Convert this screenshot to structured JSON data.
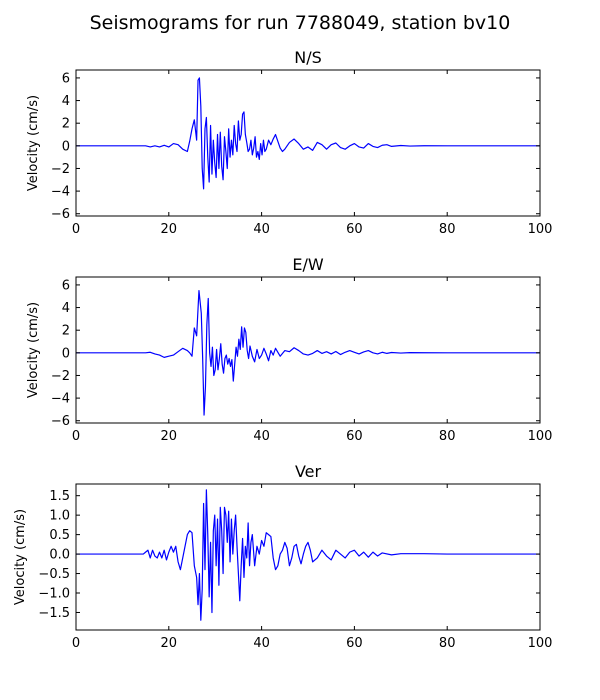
{
  "title": "Seismograms for run 7788049, station bv10",
  "chart_data": [
    {
      "type": "line",
      "title": "N/S",
      "ylabel": "Velocity (cm/s)",
      "xlim": [
        0,
        100
      ],
      "ylim": [
        -6.2,
        6.7
      ],
      "xticks": [
        0,
        20,
        40,
        60,
        80,
        100
      ],
      "yticks": [
        -6,
        -4,
        -2,
        0,
        2,
        4,
        6
      ],
      "xtick_labels": [
        "0",
        "20",
        "40",
        "60",
        "80",
        "100"
      ],
      "ytick_labels": [
        "−6",
        "−4",
        "−2",
        "0",
        "2",
        "4",
        "6"
      ],
      "color": "#0000ff",
      "x": [
        0,
        15,
        16,
        17,
        18,
        19,
        20,
        21,
        22,
        23,
        24,
        24.5,
        25,
        25.5,
        26,
        26.3,
        26.6,
        26.9,
        27.2,
        27.5,
        27.8,
        28.1,
        28.4,
        28.7,
        29,
        29.3,
        29.6,
        29.9,
        30.2,
        30.5,
        30.8,
        31.1,
        31.4,
        31.7,
        32,
        32.3,
        32.6,
        32.9,
        33.2,
        33.5,
        33.8,
        34.1,
        34.4,
        34.7,
        35,
        35.3,
        35.6,
        35.9,
        36.2,
        36.5,
        36.8,
        37.1,
        37.4,
        37.7,
        38,
        38.3,
        38.6,
        38.9,
        39.2,
        39.5,
        39.8,
        40.1,
        40.4,
        40.7,
        41,
        41.5,
        42,
        42.5,
        43,
        43.5,
        44,
        44.5,
        45,
        46,
        47,
        48,
        49,
        50,
        51,
        52,
        53,
        54,
        55,
        56,
        57,
        58,
        59,
        60,
        61,
        62,
        63,
        64,
        65,
        66,
        67,
        68,
        70,
        72,
        75,
        80,
        100
      ],
      "y": [
        0,
        0,
        -0.1,
        0,
        -0.1,
        0.05,
        -0.1,
        0.2,
        0.1,
        -0.3,
        -0.5,
        0.4,
        1.5,
        2.3,
        0.5,
        5.8,
        6.0,
        3.5,
        -2.0,
        -3.8,
        1.5,
        2.5,
        -1.0,
        -3.2,
        1.8,
        -2.5,
        0.5,
        -1.5,
        -2.8,
        1.0,
        -2.0,
        1.2,
        -1.8,
        -3.0,
        0.8,
        -0.5,
        -2.0,
        1.5,
        -1.0,
        0.5,
        -0.8,
        1.8,
        0.2,
        -0.5,
        2.2,
        0.5,
        1.0,
        2.8,
        3.0,
        1.0,
        0.3,
        -0.5,
        -0.3,
        0.5,
        -0.8,
        -0.2,
        0.8,
        -1.0,
        -0.5,
        -1.2,
        0.2,
        -0.8,
        0.5,
        -0.5,
        -0.3,
        0.5,
        0.1,
        0.6,
        1.0,
        0.4,
        -0.2,
        -0.5,
        -0.3,
        0.3,
        0.6,
        0.2,
        -0.3,
        -0.1,
        -0.4,
        0.3,
        0.1,
        -0.3,
        0.1,
        0.25,
        -0.15,
        -0.3,
        0.0,
        0.2,
        -0.1,
        -0.2,
        0.2,
        -0.05,
        -0.15,
        0.05,
        0.1,
        -0.05,
        0.03,
        -0.02,
        0.01,
        0,
        0
      ]
    },
    {
      "type": "line",
      "title": "E/W",
      "ylabel": "Velocity (cm/s)",
      "xlim": [
        0,
        100
      ],
      "ylim": [
        -6.2,
        6.7
      ],
      "xticks": [
        0,
        20,
        40,
        60,
        80,
        100
      ],
      "yticks": [
        -6,
        -4,
        -2,
        0,
        2,
        4,
        6
      ],
      "xtick_labels": [
        "0",
        "20",
        "40",
        "60",
        "80",
        "100"
      ],
      "ytick_labels": [
        "−6",
        "−4",
        "−2",
        "0",
        "2",
        "4",
        "6"
      ],
      "color": "#0000ff",
      "x": [
        0,
        15,
        16,
        17,
        18,
        19,
        20,
        21,
        22,
        23,
        24,
        24.5,
        25,
        25.5,
        26,
        26.5,
        27,
        27.3,
        27.6,
        27.9,
        28.2,
        28.5,
        28.8,
        29.1,
        29.4,
        29.7,
        30,
        30.3,
        30.6,
        30.9,
        31.2,
        31.5,
        31.8,
        32.1,
        32.4,
        32.7,
        33,
        33.3,
        33.6,
        33.9,
        34.2,
        34.5,
        34.8,
        35.1,
        35.4,
        35.7,
        36,
        36.3,
        36.6,
        36.9,
        37.2,
        37.5,
        38,
        38.5,
        39,
        39.5,
        40,
        40.5,
        41,
        41.5,
        42,
        42.5,
        43,
        44,
        45,
        46,
        47,
        48,
        49,
        50,
        51,
        52,
        53,
        54,
        55,
        56,
        57,
        58,
        59,
        60,
        61,
        62,
        63,
        64,
        65,
        66,
        67,
        68,
        70,
        72,
        75,
        80,
        100
      ],
      "y": [
        0,
        0,
        0.05,
        -0.1,
        -0.2,
        -0.4,
        -0.3,
        -0.2,
        0.1,
        0.4,
        0.2,
        0.0,
        -0.3,
        2.2,
        1.5,
        5.5,
        3.5,
        -0.5,
        -5.5,
        -3.0,
        2.5,
        4.8,
        0.0,
        -1.2,
        0.5,
        -2.0,
        -1.5,
        0.3,
        -1.5,
        -0.5,
        0.8,
        -1.0,
        -1.8,
        -0.5,
        -0.2,
        -1.0,
        -0.5,
        -1.2,
        -0.6,
        -2.5,
        -1.0,
        0.5,
        -0.3,
        1.2,
        0.3,
        2.3,
        0.5,
        2.2,
        1.8,
        0.2,
        -0.5,
        0.6,
        -0.3,
        -0.8,
        0.3,
        -0.5,
        -0.2,
        0.4,
        -0.1,
        -0.7,
        0.2,
        -0.2,
        0.4,
        -0.3,
        0.2,
        0.1,
        0.45,
        0.2,
        -0.1,
        -0.2,
        -0.05,
        0.2,
        -0.05,
        0.1,
        -0.1,
        0.12,
        -0.15,
        0.05,
        0.2,
        0.05,
        -0.1,
        0.08,
        0.2,
        0.0,
        -0.1,
        0.05,
        -0.05,
        0.03,
        -0.02,
        0.02,
        0.01,
        0,
        0
      ]
    },
    {
      "type": "line",
      "title": "Ver",
      "ylabel": "Velocity (cm/s)",
      "xlim": [
        0,
        100
      ],
      "ylim": [
        -1.95,
        1.8
      ],
      "xticks": [
        0,
        20,
        40,
        60,
        80,
        100
      ],
      "yticks": [
        -1.5,
        -1.0,
        -0.5,
        0.0,
        0.5,
        1.0,
        1.5
      ],
      "xtick_labels": [
        "0",
        "20",
        "40",
        "60",
        "80",
        "100"
      ],
      "ytick_labels": [
        "−1.5",
        "−1.0",
        "−0.5",
        "0.0",
        "0.5",
        "1.0",
        "1.5"
      ],
      "color": "#0000ff",
      "x": [
        0,
        14.5,
        15,
        15.5,
        16,
        16.5,
        17,
        17.5,
        18,
        18.5,
        19,
        19.5,
        20,
        20.5,
        21,
        21.5,
        22,
        22.5,
        23,
        23.5,
        24,
        24.5,
        25,
        25.5,
        26,
        26.3,
        26.6,
        26.9,
        27.2,
        27.5,
        27.8,
        28.1,
        28.4,
        28.7,
        29,
        29.3,
        29.6,
        29.9,
        30.2,
        30.5,
        30.8,
        31.1,
        31.4,
        31.7,
        32,
        32.3,
        32.6,
        32.9,
        33.2,
        33.5,
        33.8,
        34.1,
        34.4,
        34.7,
        35,
        35.3,
        35.6,
        35.9,
        36.2,
        36.5,
        36.8,
        37.1,
        37.4,
        37.7,
        38,
        38.5,
        39,
        39.5,
        40,
        40.5,
        41,
        41.5,
        42,
        42.5,
        43,
        43.5,
        44,
        44.5,
        45,
        45.5,
        46,
        46.5,
        47,
        47.5,
        48,
        48.5,
        49,
        49.5,
        50,
        50.5,
        51,
        52,
        53,
        54,
        55,
        56,
        57,
        58,
        59,
        60,
        61,
        62,
        63,
        64,
        65,
        66,
        68,
        70,
        75,
        80,
        100
      ],
      "y": [
        0,
        0,
        0.05,
        0.1,
        -0.1,
        0.1,
        -0.05,
        -0.1,
        0.05,
        -0.1,
        0.1,
        -0.15,
        0.05,
        0.2,
        0.05,
        0.2,
        -0.2,
        -0.4,
        -0.1,
        0.2,
        0.5,
        0.6,
        0.55,
        -0.3,
        -0.6,
        -1.3,
        -0.5,
        -1.7,
        -0.9,
        1.3,
        -0.4,
        1.65,
        0.5,
        -1.1,
        0.3,
        -1.5,
        0.6,
        1.0,
        -0.3,
        0.9,
        -0.8,
        1.2,
        0.6,
        -0.5,
        1.2,
        1.0,
        0.3,
        1.1,
        -0.2,
        0.9,
        0.0,
        0.6,
        1.0,
        0.2,
        -0.5,
        -1.2,
        -0.3,
        0.4,
        -0.6,
        0.2,
        -0.1,
        0.8,
        -0.3,
        0.3,
        0.5,
        -0.3,
        0.2,
        0.0,
        0.35,
        0.2,
        0.55,
        0.5,
        0.45,
        -0.1,
        -0.4,
        -0.3,
        0.0,
        0.1,
        0.3,
        0.15,
        -0.3,
        -0.1,
        0.2,
        0.25,
        -0.05,
        -0.25,
        0.0,
        0.2,
        0.3,
        0.1,
        -0.2,
        -0.1,
        0.1,
        -0.05,
        -0.15,
        0.1,
        0.0,
        -0.1,
        0.05,
        0.1,
        -0.05,
        0.05,
        -0.08,
        0.05,
        -0.05,
        0.03,
        -0.02,
        0.01,
        0.01,
        0,
        0
      ]
    }
  ]
}
